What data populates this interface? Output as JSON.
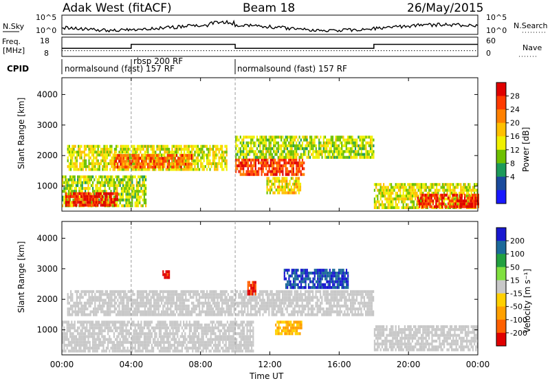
{
  "header": {
    "station": "Adak West (fitACF)",
    "beam": "Beam 18",
    "date": "26/May/2015"
  },
  "noise_panel": {
    "left_label": "N.Sky",
    "right_label": "N.Search",
    "left_ticks": [
      "10^5",
      "10^0"
    ],
    "right_ticks": [
      "10^5",
      "10^0"
    ]
  },
  "freq_panel": {
    "label_line1": "Freq.",
    "label_line2": "[MHz]",
    "left_ticks": [
      "18",
      "8"
    ],
    "right_ticks": [
      "60",
      "0"
    ],
    "right_label": "Nave"
  },
  "cpid": {
    "label": "CPID",
    "segments": [
      {
        "name": "normalsound (fast) 157 RF",
        "start_h": 0,
        "end_h": 10
      },
      {
        "name": "rbsp 200 RF",
        "start_h": 4,
        "end_h": 10
      },
      {
        "name": "normalsound (fast) 157 RF",
        "start_h": 10,
        "end_h": 24
      }
    ]
  },
  "power_panel": {
    "ylabel": "Slant Range [km]",
    "cbar_label": "Power [dB]",
    "cbar_ticks": [
      "28",
      "24",
      "20",
      "16",
      "12",
      "8",
      "4"
    ],
    "cbar_colors": [
      "#e00000",
      "#ff3a00",
      "#ff8000",
      "#ffc000",
      "#f0f000",
      "#6ec000",
      "#1c9a5a",
      "#1a4a9c",
      "#1818ff"
    ]
  },
  "velocity_panel": {
    "ylabel": "Slant Range [km]",
    "cbar_label": "Velocity [m s⁻¹]",
    "cbar_ticks": [
      "200",
      "100",
      "50",
      "15",
      "-15",
      "-50",
      "-100",
      "-200"
    ],
    "cbar_colors": [
      "#1818d0",
      "#1c6a9a",
      "#22a040",
      "#80e040",
      "#c8c8c8",
      "#ffd000",
      "#ffa000",
      "#ff6000",
      "#e00000"
    ]
  },
  "xaxis": {
    "ticks": [
      "00:00",
      "04:00",
      "08:00",
      "12:00",
      "16:00",
      "20:00",
      "00:00"
    ],
    "label": "Time UT"
  },
  "yaxis_ticks": [
    "4000",
    "3000",
    "2000",
    "1000"
  ],
  "chart_data": {
    "type": "heatmap",
    "title": "Adak West (fitACF)",
    "subtitle": "Beam 18",
    "date": "26/May/2015",
    "x": {
      "label": "Time UT",
      "range_hours": [
        0,
        24
      ],
      "ticks": [
        "00:00",
        "04:00",
        "08:00",
        "12:00",
        "16:00",
        "20:00",
        "00:00"
      ]
    },
    "y": {
      "label": "Slant Range [km]",
      "range_km": [
        180,
        4550
      ],
      "ticks": [
        1000,
        2000,
        3000,
        4000
      ]
    },
    "freq_mhz_steps": [
      {
        "start_h": 0,
        "end_h": 4,
        "freq": 12
      },
      {
        "start_h": 4,
        "end_h": 10,
        "freq": 14.5
      },
      {
        "start_h": 10,
        "end_h": 18,
        "freq": 12
      },
      {
        "start_h": 18,
        "end_h": 24,
        "freq": 14.5
      }
    ],
    "panels": [
      {
        "name": "Power",
        "units": "dB",
        "bands": [
          {
            "t_start": 0,
            "t_end": 4.8,
            "r_min": 330,
            "r_max": 1350,
            "value": 10
          },
          {
            "t_start": 0.2,
            "t_end": 3.2,
            "r_min": 350,
            "r_max": 800,
            "value": 26
          },
          {
            "t_start": 0.3,
            "t_end": 9.5,
            "r_min": 1500,
            "r_max": 2350,
            "value": 12
          },
          {
            "t_start": 3.0,
            "t_end": 7.5,
            "r_min": 1650,
            "r_max": 2050,
            "value": 22
          },
          {
            "t_start": 10,
            "t_end": 14,
            "r_min": 1400,
            "r_max": 1900,
            "value": 24
          },
          {
            "t_start": 10,
            "t_end": 18,
            "r_min": 1900,
            "r_max": 2650,
            "value": 10
          },
          {
            "t_start": 11.8,
            "t_end": 13.8,
            "r_min": 800,
            "r_max": 1300,
            "value": 14
          },
          {
            "t_start": 18,
            "t_end": 24,
            "r_min": 300,
            "r_max": 1100,
            "value": 12
          },
          {
            "t_start": 20.5,
            "t_end": 24,
            "r_min": 350,
            "r_max": 750,
            "value": 26
          }
        ]
      },
      {
        "name": "Velocity",
        "units": "m s-1",
        "bands": [
          {
            "t_start": 0,
            "t_end": 11,
            "r_min": 300,
            "r_max": 1300,
            "value": 0
          },
          {
            "t_start": 0.3,
            "t_end": 18,
            "r_min": 1500,
            "r_max": 2300,
            "value": 0
          },
          {
            "t_start": 12.3,
            "t_end": 13.8,
            "r_min": 900,
            "r_max": 1300,
            "value": -50
          },
          {
            "t_start": 5.8,
            "t_end": 6.2,
            "r_min": 2700,
            "r_max": 2950,
            "value": -200
          },
          {
            "t_start": 10.7,
            "t_end": 11.2,
            "r_min": 2150,
            "r_max": 2600,
            "value": -200
          },
          {
            "t_start": 12.8,
            "t_end": 16.5,
            "r_min": 2400,
            "r_max": 3000,
            "value": 200
          },
          {
            "t_start": 18,
            "t_end": 24,
            "r_min": 300,
            "r_max": 1150,
            "value": 0
          }
        ]
      }
    ]
  }
}
